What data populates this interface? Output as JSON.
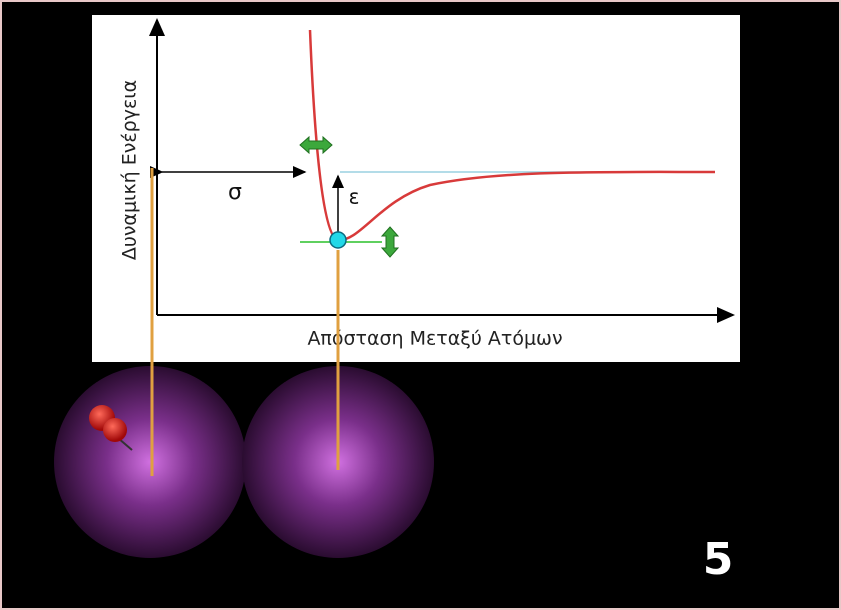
{
  "diagram": {
    "y_axis_label": "Δυναμική Ενέργεια",
    "x_axis_label": "Απόσταση Μεταξύ Ατόμων",
    "sigma_label": "σ",
    "epsilon_label": "ε",
    "slide_number": "5"
  }
}
